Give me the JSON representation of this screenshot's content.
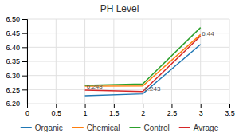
{
  "chart_data": {
    "type": "line",
    "title": "PH Level",
    "x": [
      1,
      2,
      3
    ],
    "series": [
      {
        "name": "Organic",
        "values": [
          6.228,
          6.235,
          6.41
        ]
      },
      {
        "name": "Chemical",
        "values": [
          6.262,
          6.263,
          6.445
        ]
      },
      {
        "name": "Control",
        "values": [
          6.265,
          6.27,
          6.47
        ]
      },
      {
        "name": "Avrage",
        "values": [
          6.248,
          6.243,
          6.44
        ]
      }
    ],
    "annotations": [
      {
        "x": 1.03,
        "y": 6.252,
        "text": "6.248"
      },
      {
        "x": 2.03,
        "y": 6.243,
        "text": "6.243"
      },
      {
        "x": 3.02,
        "y": 6.438,
        "text": "6.44"
      }
    ],
    "xlim": [
      0,
      3.5
    ],
    "ylim": [
      6.2,
      6.5
    ],
    "xticks": [
      0,
      0.5,
      1,
      1.5,
      2,
      2.5,
      3,
      3.5
    ],
    "yticks": [
      {
        "value": 6.2,
        "label": "6.20"
      },
      6.25,
      {
        "value": 6.3,
        "label": "6.30"
      },
      6.35,
      {
        "value": 6.4,
        "label": "6.40"
      },
      6.45,
      {
        "value": 6.5,
        "label": "6.50"
      }
    ],
    "grid": true,
    "legend": "bottom"
  }
}
